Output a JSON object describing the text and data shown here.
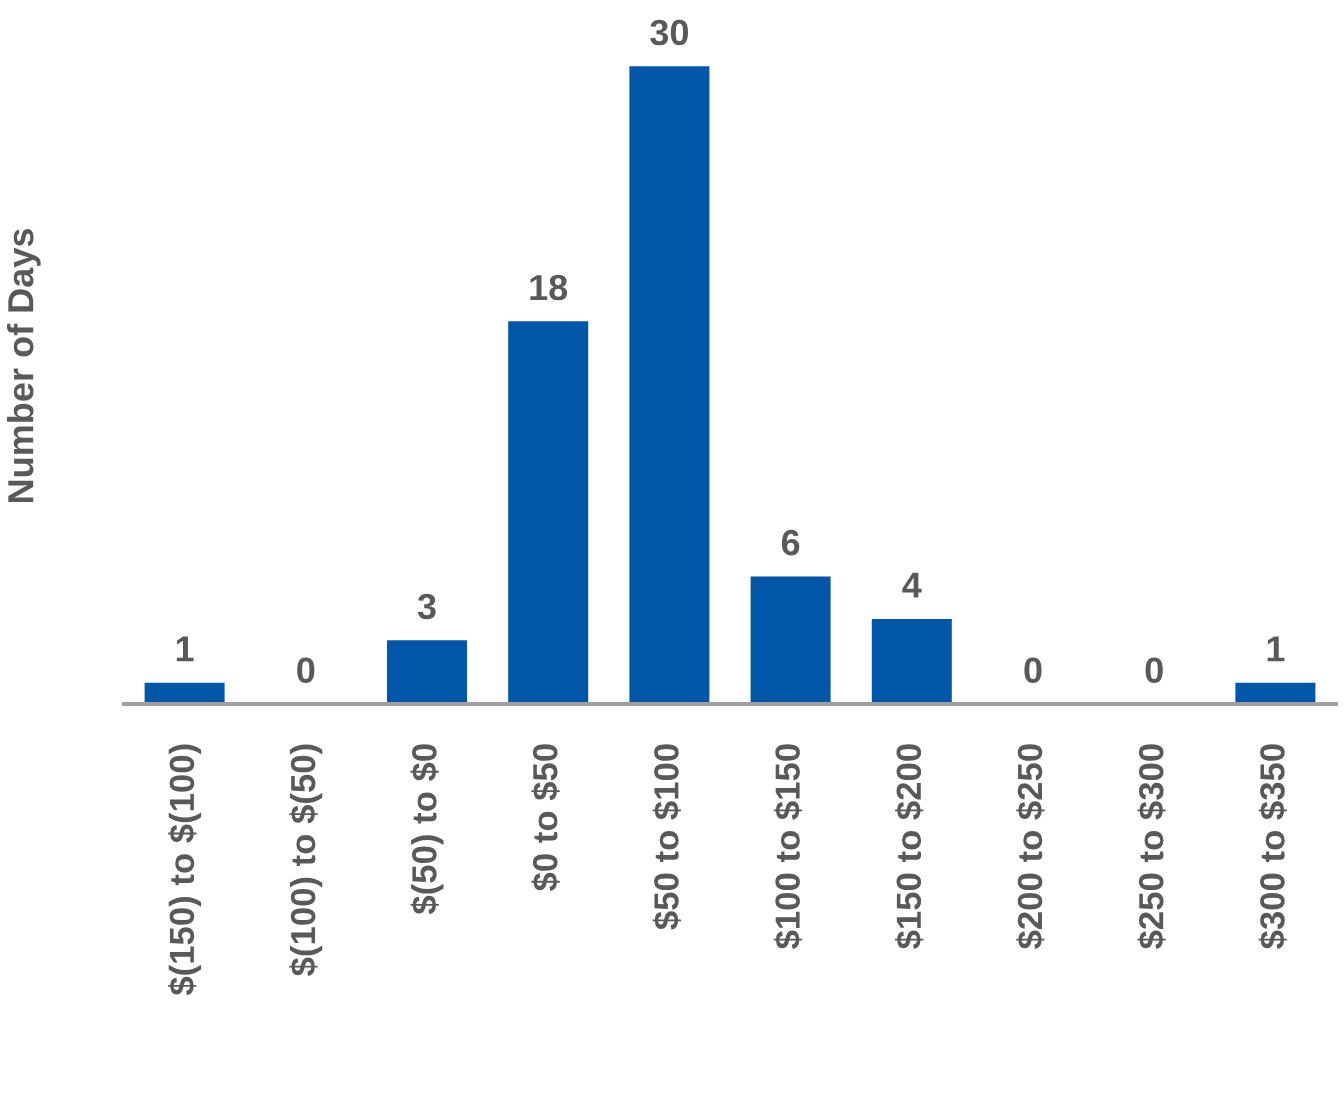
{
  "chart_data": {
    "type": "bar",
    "ylabel": "Number of Days",
    "categories": [
      "$(150) to $(100)",
      "$(100) to $(50)",
      "$(50) to $0",
      "$0 to $50",
      "$50 to $100",
      "$100 to $150",
      "$150 to $200",
      "$200 to $250",
      "$250 to $300",
      "$300 to $350"
    ],
    "values": [
      1,
      0,
      3,
      18,
      30,
      6,
      4,
      0,
      0,
      1
    ],
    "color": "#0057a8",
    "data_labels": true,
    "grid": false
  }
}
